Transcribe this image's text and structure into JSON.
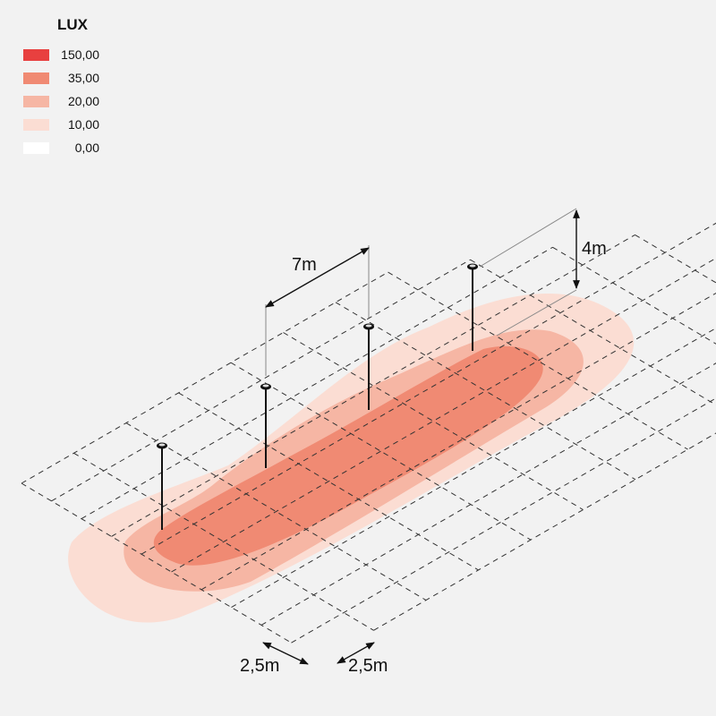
{
  "legend": {
    "title": "LUX",
    "items": [
      {
        "value": "150,00",
        "color": "#e8403f"
      },
      {
        "value": "35,00",
        "color": "#f08a73"
      },
      {
        "value": "20,00",
        "color": "#f6b6a4"
      },
      {
        "value": "10,00",
        "color": "#fbddd3"
      },
      {
        "value": "0,00",
        "color": "#ffffff"
      }
    ]
  },
  "dimensions": {
    "pole_spacing": "7m",
    "pole_height": "4m",
    "grid_cell_a": "2,5m",
    "grid_cell_b": "2,5m"
  }
}
